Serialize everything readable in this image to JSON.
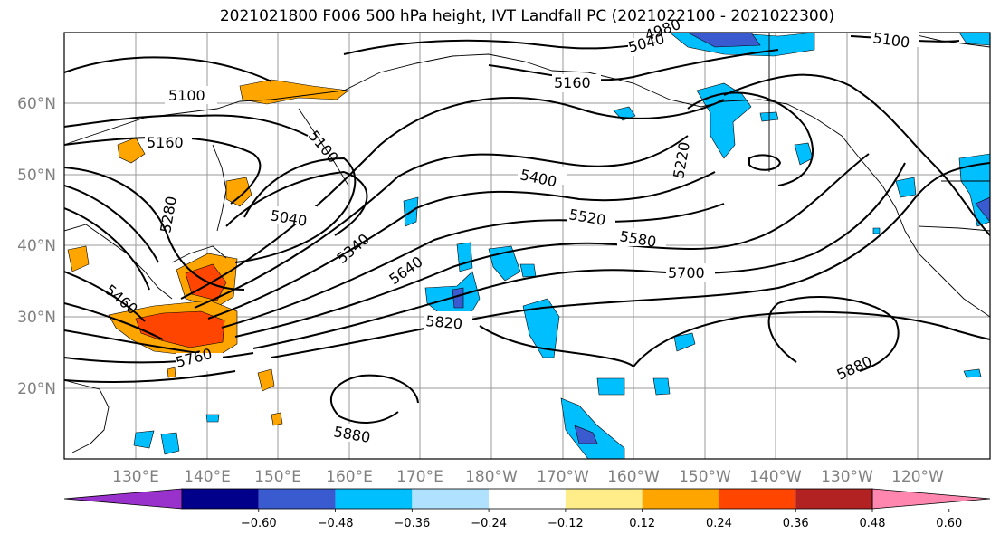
{
  "title": "2021021800 F006 500 hPa height, IVT Landfall PC (2021022100 - 2021022300)",
  "lat_labels": [
    "60°N",
    "50°N",
    "40°N",
    "30°N",
    "20°N"
  ],
  "lon_labels": [
    "130°E",
    "140°E",
    "150°E",
    "160°E",
    "170°E",
    "180°W",
    "170°W",
    "160°W",
    "150°W",
    "140°W",
    "130°W",
    "120°W"
  ],
  "contour_labels": [
    "5100",
    "5160",
    "5100",
    "5280",
    "5040",
    "5340",
    "5460",
    "5640",
    "5760",
    "5820",
    "5880",
    "5880",
    "5700",
    "5580",
    "5520",
    "5400",
    "5220",
    "5160",
    "5040",
    "4980",
    "5100"
  ],
  "colorbar": {
    "tick_labels": [
      "−0.60",
      "−0.48",
      "−0.36",
      "−0.24",
      "−0.12",
      "0.12",
      "0.24",
      "0.36",
      "0.48",
      "0.60"
    ],
    "colors": [
      "#9932cc",
      "#00008b",
      "#3a5bcf",
      "#00bfff",
      "#b0e2ff",
      "#ffffff",
      "#ffed8a",
      "#ffa500",
      "#ff4500",
      "#b22222",
      "#ff86ae"
    ]
  }
}
